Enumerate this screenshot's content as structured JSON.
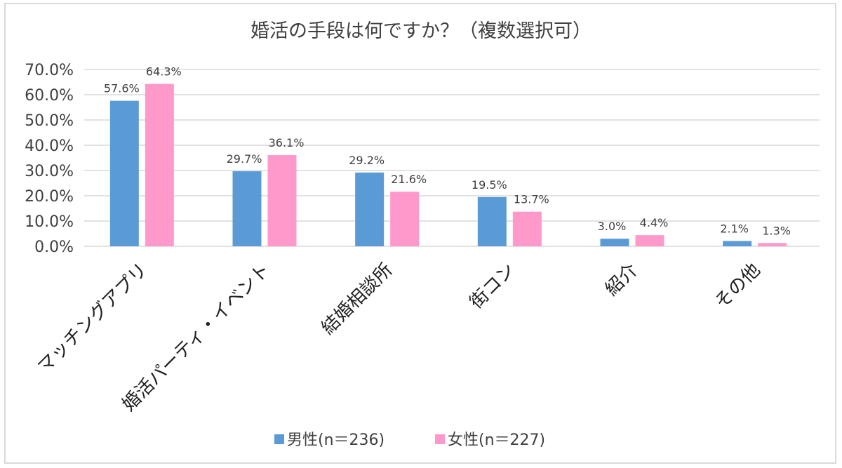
{
  "chart_data": {
    "type": "bar",
    "title": "婚活の手段は何ですか？（複数選択可）",
    "categories": [
      "マッチングアプリ",
      "婚活パーティ・イベント",
      "結婚相談所",
      "街コン",
      "紹介",
      "その他"
    ],
    "series": [
      {
        "name": "男性(n＝236)",
        "color": "#5b9bd5",
        "values": [
          57.6,
          29.7,
          29.2,
          19.5,
          3.0,
          2.1
        ],
        "labels": [
          "57.6%",
          "29.7%",
          "29.2%",
          "19.5%",
          "3.0%",
          "2.1%"
        ]
      },
      {
        "name": "女性(n＝227)",
        "color": "#ff99cc",
        "values": [
          64.3,
          36.1,
          21.6,
          13.7,
          4.4,
          1.3
        ],
        "labels": [
          "64.3%",
          "36.1%",
          "21.6%",
          "13.7%",
          "4.4%",
          "1.3%"
        ]
      }
    ],
    "ylim": [
      0,
      70
    ],
    "yticks": [
      "0.0%",
      "10.0%",
      "20.0%",
      "30.0%",
      "40.0%",
      "50.0%",
      "60.0%",
      "70.0%"
    ],
    "xlabel": "",
    "ylabel": "",
    "grid": true,
    "legend_position": "bottom"
  }
}
